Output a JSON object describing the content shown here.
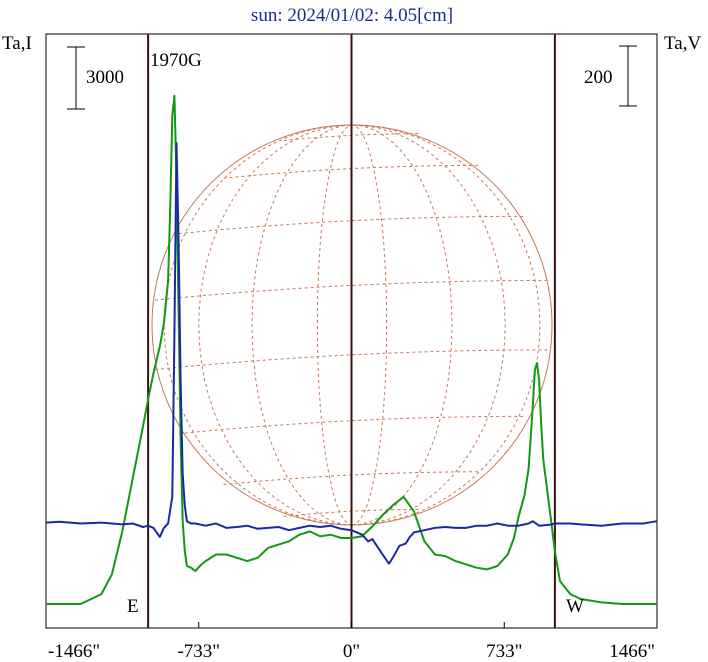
{
  "chart_data": {
    "type": "line",
    "title": "sun: 2024/01/02: 4.05[cm]",
    "left_axis_label": "Ta,I",
    "right_axis_label": "Ta,V",
    "left_scale_bar": "3000",
    "right_scale_bar": "200",
    "source_label": "1970G",
    "east_label": "E",
    "west_label": "W",
    "x_tick_labels": [
      "-1466\"",
      "-733\"",
      "0\"",
      "733\"",
      "1466\""
    ],
    "x_ticks": [
      -1466,
      -733,
      0,
      733,
      1466
    ],
    "xlim": [
      -1466,
      1466
    ],
    "limb_lines": [
      -976,
      0,
      976
    ],
    "grid": false,
    "series": [
      {
        "key": "I",
        "color": "#119911",
        "ylim": [
          0,
          16000
        ],
        "x": [
          -1466,
          -1300,
          -1200,
          -1150,
          -1100,
          -1050,
          -1000,
          -976,
          -950,
          -920,
          -900,
          -880,
          -870,
          -860,
          -850,
          -840,
          -830,
          -820,
          -810,
          -800,
          -790,
          -770,
          -750,
          -720,
          -700,
          -650,
          -600,
          -550,
          -500,
          -450,
          -400,
          -350,
          -300,
          -250,
          -200,
          -150,
          -100,
          -50,
          0,
          50,
          100,
          150,
          200,
          250,
          300,
          350,
          400,
          450,
          500,
          550,
          600,
          650,
          700,
          750,
          780,
          800,
          830,
          850,
          870,
          880,
          890,
          900,
          910,
          920,
          940,
          960,
          976,
          1000,
          1050,
          1100,
          1200,
          1300,
          1400,
          1466
        ],
        "values": [
          0,
          0,
          300,
          900,
          2200,
          3800,
          5400,
          6200,
          7000,
          7800,
          8500,
          9800,
          12000,
          14800,
          15400,
          13000,
          9000,
          5000,
          2500,
          1600,
          1150,
          1100,
          1000,
          1200,
          1300,
          1500,
          1500,
          1400,
          1300,
          1400,
          1700,
          1800,
          1900,
          2100,
          2200,
          2050,
          2100,
          2000,
          2000,
          2050,
          2350,
          2700,
          3000,
          3250,
          2800,
          1900,
          1500,
          1450,
          1300,
          1200,
          1100,
          1050,
          1150,
          1500,
          2000,
          2600,
          3300,
          4100,
          6000,
          7100,
          7300,
          6800,
          5500,
          4400,
          3400,
          2400,
          1600,
          700,
          300,
          150,
          50,
          0,
          0,
          0
        ]
      },
      {
        "key": "V",
        "color": "#1a2aa5",
        "ylim": [
          -180,
          1000
        ],
        "x": [
          -1466,
          -1400,
          -1300,
          -1200,
          -1100,
          -1050,
          -1000,
          -976,
          -950,
          -920,
          -900,
          -880,
          -860,
          -850,
          -840,
          -830,
          -820,
          -810,
          -800,
          -790,
          -770,
          -750,
          -700,
          -650,
          -600,
          -550,
          -500,
          -450,
          -400,
          -350,
          -300,
          -250,
          -200,
          -150,
          -100,
          -50,
          0,
          50,
          80,
          100,
          150,
          180,
          200,
          230,
          260,
          280,
          300,
          350,
          400,
          450,
          500,
          550,
          600,
          650,
          700,
          750,
          800,
          850,
          870,
          900,
          950,
          976,
          1000,
          1050,
          1100,
          1200,
          1300,
          1400,
          1466
        ],
        "values": [
          2,
          4,
          0,
          2,
          -2,
          0,
          -8,
          -5,
          -10,
          -30,
          -10,
          0,
          60,
          420,
          850,
          640,
          320,
          110,
          40,
          5,
          0,
          0,
          -5,
          0,
          -10,
          -8,
          -5,
          -12,
          -10,
          -8,
          -15,
          -10,
          -5,
          -8,
          -5,
          -12,
          -15,
          -25,
          -40,
          -35,
          -70,
          -90,
          -75,
          -50,
          -45,
          -30,
          -20,
          -15,
          -10,
          -8,
          -10,
          -10,
          -5,
          -5,
          0,
          -5,
          -5,
          0,
          5,
          -5,
          -3,
          0,
          0,
          0,
          -2,
          -5,
          0,
          0,
          5
        ]
      }
    ]
  }
}
